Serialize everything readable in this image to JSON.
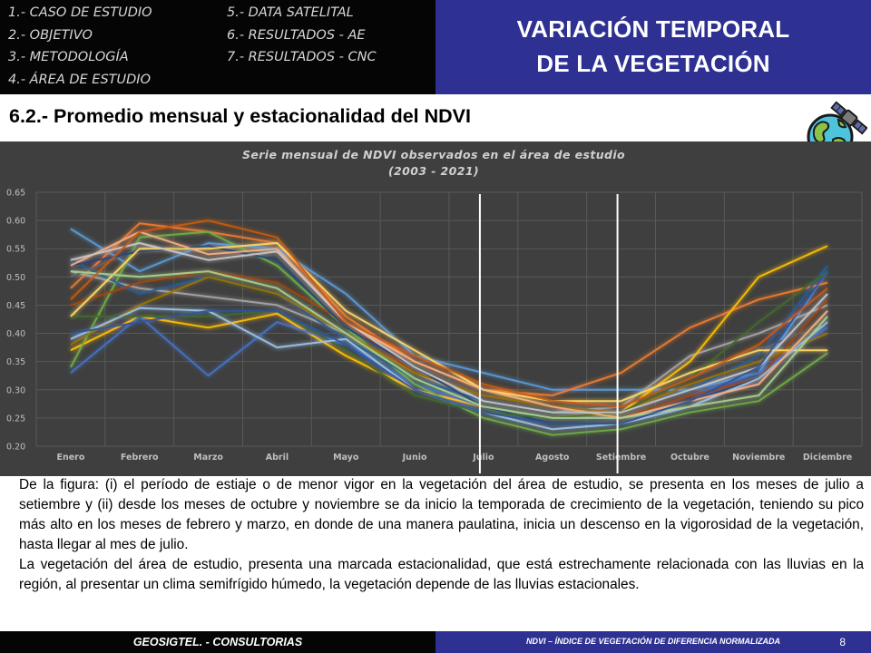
{
  "nav": {
    "items": [
      "1.- CASO DE ESTUDIO",
      "2.- OBJETIVO",
      "3.- METODOLOGÍA",
      "4.- ÁREA DE ESTUDIO",
      "5.- DATA SATELITAL",
      "6.- RESULTADOS - AE",
      "7.- RESULTADOS - CNC"
    ]
  },
  "header": {
    "title_line1": "VARIACIÓN TEMPORAL",
    "title_line2": "DE LA VEGETACIÓN"
  },
  "section": {
    "title": "6.2.- Promedio mensual y estacionalidad del NDVI"
  },
  "colors": {
    "nav_bg": "#050505",
    "brand_blue": "#2e3191",
    "chart_bg": "#3f3f3f"
  },
  "icon": "globe-satellite-icon",
  "chart_data": {
    "type": "line",
    "title": "Serie mensual  de NDVI observados  en el área de estudio",
    "subtitle": "(2003  - 2021)",
    "xlabel": "",
    "ylabel": "",
    "ylim": [
      0.2,
      0.65
    ],
    "yticks": [
      "0.65",
      "0.60",
      "0.55",
      "0.50",
      "0.45",
      "0.40",
      "0.35",
      "0.30",
      "0.25",
      "0.20"
    ],
    "grid": true,
    "legend": "none",
    "categories": [
      "Enero",
      "Febrero",
      "Marzo",
      "Abril",
      "Mayo",
      "Junio",
      "Julio",
      "Agosto",
      "Setiembre",
      "Octubre",
      "Noviembre",
      "Diciembre"
    ],
    "vertical_markers": [
      "Julio",
      "Setiembre"
    ],
    "series": [
      {
        "color": "#5b9bd5",
        "values": [
          0.585,
          0.51,
          0.56,
          0.55,
          0.47,
          0.36,
          0.33,
          0.3,
          0.3,
          0.3,
          0.33,
          0.51
        ]
      },
      {
        "color": "#ed7d31",
        "values": [
          0.48,
          0.595,
          0.58,
          0.56,
          0.43,
          0.35,
          0.3,
          0.29,
          0.33,
          0.41,
          0.46,
          0.49
        ]
      },
      {
        "color": "#a5a5a5",
        "values": [
          0.51,
          0.48,
          0.465,
          0.45,
          0.4,
          0.33,
          0.28,
          0.26,
          0.27,
          0.36,
          0.4,
          0.45
        ]
      },
      {
        "color": "#ffc000",
        "values": [
          0.37,
          0.43,
          0.41,
          0.435,
          0.36,
          0.3,
          0.27,
          0.25,
          0.26,
          0.35,
          0.5,
          0.555
        ]
      },
      {
        "color": "#4472c4",
        "values": [
          0.33,
          0.43,
          0.325,
          0.42,
          0.38,
          0.31,
          0.27,
          0.25,
          0.25,
          0.29,
          0.33,
          0.41
        ]
      },
      {
        "color": "#70ad47",
        "values": [
          0.34,
          0.57,
          0.58,
          0.52,
          0.41,
          0.31,
          0.25,
          0.22,
          0.23,
          0.26,
          0.28,
          0.365
        ]
      },
      {
        "color": "#255e91",
        "values": [
          0.53,
          0.47,
          0.5,
          0.47,
          0.39,
          0.32,
          0.28,
          0.26,
          0.26,
          0.3,
          0.36,
          0.52
        ]
      },
      {
        "color": "#9e480e",
        "values": [
          0.45,
          0.49,
          0.51,
          0.49,
          0.42,
          0.33,
          0.29,
          0.27,
          0.25,
          0.29,
          0.32,
          0.46
        ]
      },
      {
        "color": "#636363",
        "values": [
          0.5,
          0.55,
          0.55,
          0.54,
          0.42,
          0.34,
          0.29,
          0.27,
          0.27,
          0.32,
          0.37,
          0.42
        ]
      },
      {
        "color": "#997300",
        "values": [
          0.38,
          0.45,
          0.5,
          0.47,
          0.4,
          0.33,
          0.29,
          0.27,
          0.26,
          0.31,
          0.35,
          0.4
        ]
      },
      {
        "color": "#264478",
        "values": [
          0.52,
          0.545,
          0.555,
          0.53,
          0.41,
          0.34,
          0.27,
          0.24,
          0.24,
          0.28,
          0.32,
          0.42
        ]
      },
      {
        "color": "#43682b",
        "values": [
          0.43,
          0.43,
          0.43,
          0.44,
          0.37,
          0.29,
          0.26,
          0.25,
          0.26,
          0.32,
          0.42,
          0.51
        ]
      },
      {
        "color": "#ffd966",
        "values": [
          0.43,
          0.55,
          0.55,
          0.56,
          0.44,
          0.37,
          0.3,
          0.28,
          0.28,
          0.33,
          0.37,
          0.37
        ]
      },
      {
        "color": "#9dc3e6",
        "values": [
          0.39,
          0.445,
          0.44,
          0.375,
          0.39,
          0.3,
          0.26,
          0.23,
          0.24,
          0.27,
          0.32,
          0.42
        ]
      },
      {
        "color": "#f4b183",
        "values": [
          0.52,
          0.58,
          0.54,
          0.55,
          0.42,
          0.35,
          0.3,
          0.27,
          0.25,
          0.28,
          0.31,
          0.44
        ]
      },
      {
        "color": "#c9c9c9",
        "values": [
          0.53,
          0.56,
          0.53,
          0.545,
          0.42,
          0.34,
          0.28,
          0.26,
          0.26,
          0.3,
          0.34,
          0.47
        ]
      },
      {
        "color": "#a9d18e",
        "values": [
          0.51,
          0.5,
          0.51,
          0.48,
          0.4,
          0.32,
          0.27,
          0.25,
          0.25,
          0.27,
          0.29,
          0.43
        ]
      },
      {
        "color": "#2f5597",
        "values": [
          0.4,
          0.42,
          0.44,
          0.44,
          0.38,
          0.3,
          0.26,
          0.24,
          0.24,
          0.28,
          0.34,
          0.51
        ]
      },
      {
        "color": "#c55a11",
        "values": [
          0.46,
          0.58,
          0.6,
          0.57,
          0.42,
          0.36,
          0.31,
          0.28,
          0.27,
          0.32,
          0.38,
          0.48
        ]
      }
    ]
  },
  "body": {
    "paragraph1": "De la figura: (i) el período de estiaje o de menor vigor en la vegetación del área de estudio, se presenta en los meses de julio a setiembre y (ii) desde los meses de octubre y noviembre se da inicio la temporada de crecimiento de la vegetación, teniendo su pico más alto en los meses de febrero y marzo, en donde de una manera paulatina, inicia un descenso en la vigorosidad de la vegetación, hasta llegar al mes de julio.",
    "paragraph2": "La vegetación del área de estudio, presenta una marcada estacionalidad, que está estrechamente relacionada con las lluvias en la región, al presentar un clima semifrígido húmedo, la vegetación depende de las lluvias estacionales."
  },
  "footer": {
    "company": "GEOSIGTEL. - CONSULTORIAS",
    "note": "NDVI – ÍNDICE DE VEGETACIÓN DE DIFERENCIA NORMALIZADA",
    "page": "8"
  }
}
